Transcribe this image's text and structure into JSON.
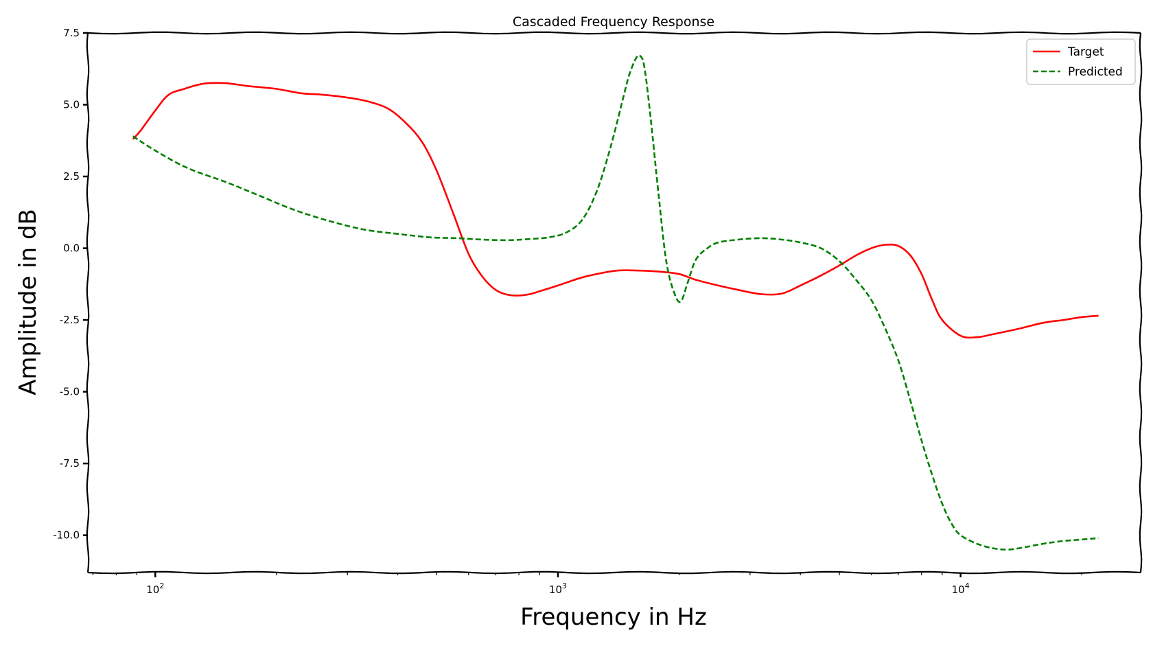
{
  "chart_data": {
    "type": "line",
    "title": "Cascaded Frequency Response",
    "xlabel": "Frequency in Hz",
    "ylabel": "Amplitude in dB",
    "xscale": "log",
    "xlim": [
      68,
      28000
    ],
    "ylim": [
      -11.3,
      7.5
    ],
    "yticks": [
      7.5,
      5.0,
      2.5,
      0.0,
      -2.5,
      -5.0,
      -7.5,
      -10.0
    ],
    "ytick_labels": [
      "7.5",
      "5.0",
      "2.5",
      "0.0",
      "-2.5",
      "-5.0",
      "-7.5",
      "-10.0"
    ],
    "xticks": [
      100,
      1000,
      10000
    ],
    "xtick_labels": [
      {
        "base": "10",
        "exp": "2"
      },
      {
        "base": "10",
        "exp": "3"
      },
      {
        "base": "10",
        "exp": "4"
      }
    ],
    "legend_position": "top-right",
    "series": [
      {
        "name": "Target",
        "color": "#ff0000",
        "style": "solid",
        "x": [
          88,
          92,
          100,
          108,
          118,
          128,
          135,
          150,
          170,
          200,
          230,
          260,
          300,
          340,
          380,
          420,
          460,
          500,
          550,
          600,
          650,
          700,
          750,
          800,
          850,
          900,
          1000,
          1100,
          1200,
          1400,
          1600,
          1800,
          2000,
          2200,
          2500,
          2800,
          3200,
          3600,
          4000,
          4500,
          5000,
          5500,
          6000,
          6500,
          7000,
          7500,
          8000,
          8500,
          9000,
          10000,
          11000,
          12000,
          14000,
          16000,
          18000,
          20000,
          22000
        ],
        "y": [
          3.8,
          4.1,
          4.8,
          5.35,
          5.55,
          5.7,
          5.75,
          5.75,
          5.65,
          5.55,
          5.4,
          5.35,
          5.25,
          5.1,
          4.85,
          4.35,
          3.7,
          2.7,
          1.2,
          -0.2,
          -1.0,
          -1.45,
          -1.62,
          -1.65,
          -1.6,
          -1.5,
          -1.3,
          -1.1,
          -0.95,
          -0.78,
          -0.78,
          -0.82,
          -0.9,
          -1.1,
          -1.3,
          -1.45,
          -1.6,
          -1.58,
          -1.3,
          -0.95,
          -0.6,
          -0.25,
          0.0,
          0.12,
          0.08,
          -0.25,
          -0.9,
          -1.8,
          -2.5,
          -3.05,
          -3.1,
          -3.0,
          -2.8,
          -2.6,
          -2.5,
          -2.4,
          -2.35
        ]
      },
      {
        "name": "Predicted",
        "color": "#008000",
        "style": "dashed",
        "x": [
          88,
          100,
          120,
          150,
          180,
          220,
          270,
          330,
          400,
          480,
          560,
          650,
          750,
          850,
          950,
          1050,
          1150,
          1250,
          1350,
          1450,
          1500,
          1560,
          1600,
          1640,
          1700,
          1780,
          1860,
          1950,
          2020,
          2100,
          2200,
          2350,
          2500,
          2800,
          3200,
          3600,
          4000,
          4500,
          5000,
          5500,
          6000,
          6500,
          7000,
          7500,
          8000,
          8500,
          9000,
          9500,
          10000,
          11000,
          12000,
          13000,
          14000,
          16000,
          18000,
          20000,
          22000
        ],
        "y": [
          3.9,
          3.4,
          2.8,
          2.3,
          1.85,
          1.35,
          0.95,
          0.65,
          0.5,
          0.38,
          0.35,
          0.3,
          0.28,
          0.32,
          0.38,
          0.55,
          1.0,
          2.0,
          3.5,
          5.2,
          6.0,
          6.6,
          6.7,
          6.3,
          4.5,
          1.8,
          -0.5,
          -1.6,
          -1.85,
          -1.2,
          -0.4,
          0.0,
          0.2,
          0.3,
          0.35,
          0.3,
          0.2,
          0.0,
          -0.45,
          -1.1,
          -1.8,
          -2.8,
          -3.9,
          -5.3,
          -6.7,
          -7.9,
          -8.9,
          -9.6,
          -10.0,
          -10.3,
          -10.45,
          -10.5,
          -10.45,
          -10.3,
          -10.2,
          -10.15,
          -10.1
        ]
      }
    ]
  }
}
